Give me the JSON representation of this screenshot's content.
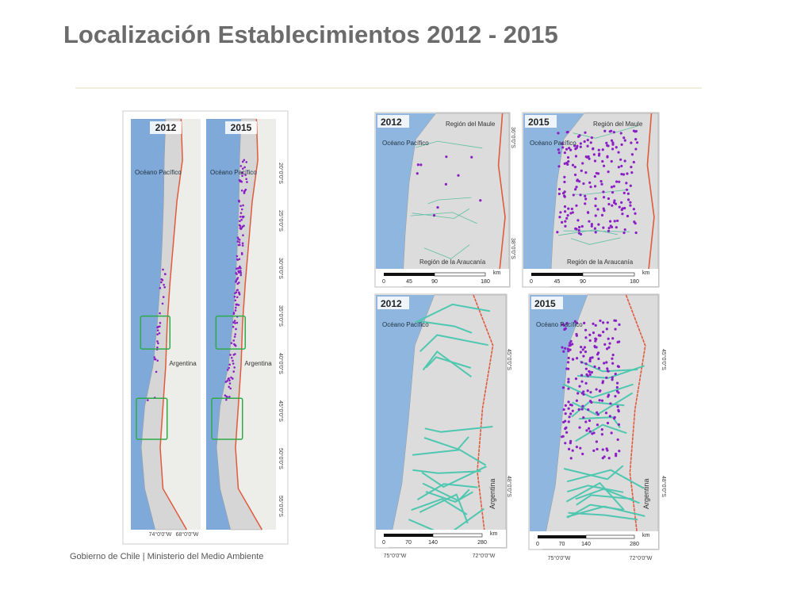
{
  "title": "Localización Establecimientos 2012 - 2015",
  "footer": "Gobierno de Chile | Ministerio del Medio Ambiente",
  "overview": {
    "panels": [
      {
        "year": "2012"
      },
      {
        "year": "2015"
      }
    ],
    "ocean": "Océano Pacífico",
    "country": "Argentina",
    "lat_labels": [
      "20°0'0\"S",
      "25°0'0\"S",
      "30°0'0\"S",
      "35°0'0\"S",
      "40°0'0\"S",
      "45°0'0\"S",
      "50°0'0\"S",
      "55°0'0\"S"
    ],
    "lon_labels": [
      "74°0'0\"W",
      "68°0'0\"W"
    ]
  },
  "maule": {
    "panels": [
      {
        "year": "2012"
      },
      {
        "year": "2015"
      }
    ],
    "north": "Región del Maule",
    "south": "Región de la Araucanía",
    "ocean": "Océano Pacífico",
    "lat_labels": [
      "36°0'0\"S",
      "38°0'0\"S"
    ],
    "scale": [
      "0",
      "45",
      "90",
      "180"
    ],
    "unit": "km"
  },
  "aysen": {
    "panels": [
      {
        "year": "2012"
      },
      {
        "year": "2015"
      }
    ],
    "ocean": "Océano Pacífico",
    "country": "Argentina",
    "lat_labels": [
      "45°0'0\"S",
      "48°0'0\"S"
    ],
    "lon_labels": [
      "75°0'0\"W",
      "72°0'0\"W"
    ],
    "scale": [
      "0",
      "70",
      "140",
      "280"
    ],
    "unit": "km"
  }
}
